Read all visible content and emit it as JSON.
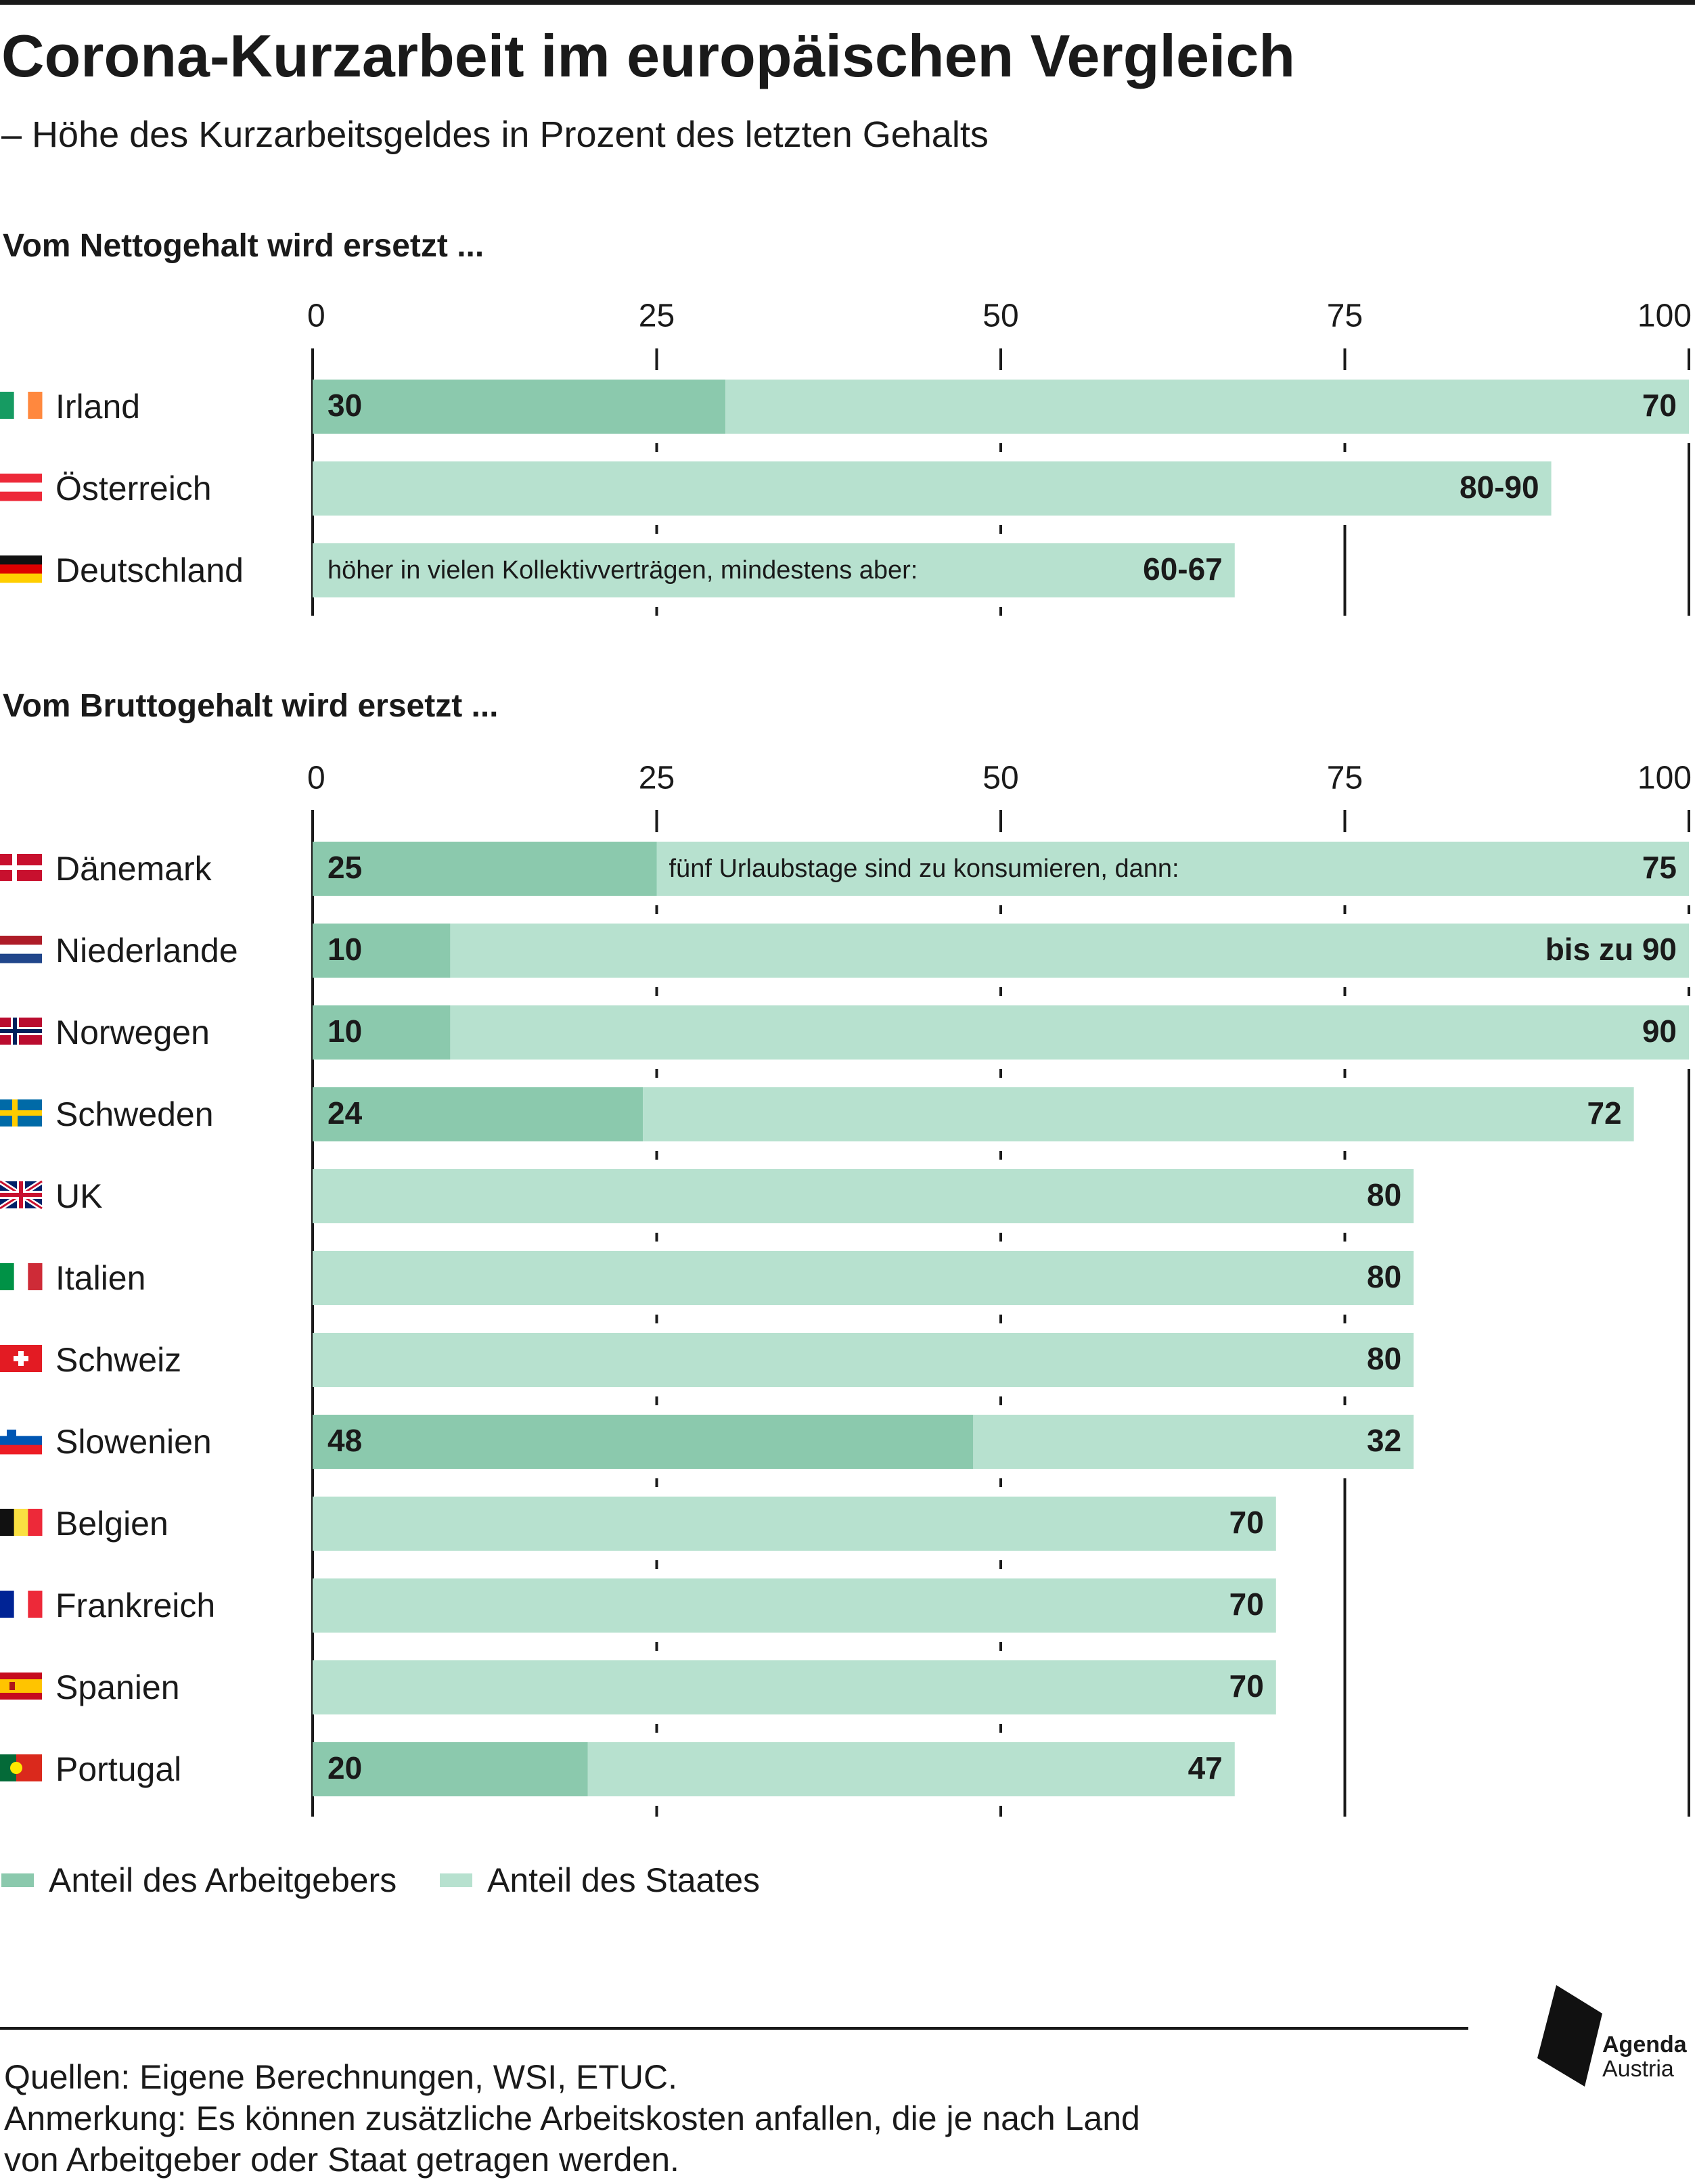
{
  "title": "Corona-Kurzarbeit im europäischen Vergleich",
  "subtitle": "– Höhe des Kurzarbeitsgeldes in Prozent des letzten Gehalts",
  "colors": {
    "employer": "#8bc9ad",
    "state": "#b7e1cf",
    "axis": "#1a1a1a"
  },
  "legend": {
    "employer": "Anteil des Arbeitgebers",
    "state": "Anteil des Staates"
  },
  "footer": {
    "line1": "Quellen: Eigene Berechnungen, WSI, ETUC.",
    "line2": "Anmerkung: Es können zusätzliche Arbeitskosten anfallen, die je nach Land",
    "line3": "von Arbeitgeber oder Staat getragen werden."
  },
  "logo": {
    "line1": "Agenda",
    "line2": "Austria"
  },
  "chart_data": [
    {
      "type": "bar",
      "orientation": "horizontal",
      "stacked": true,
      "title": "Vom Nettogehalt wird ersetzt ...",
      "xlim": [
        0,
        100
      ],
      "ticks": [
        0,
        25,
        50,
        75,
        100
      ],
      "rows": [
        {
          "country": "Irland",
          "flag": "flag-ireland",
          "employer": 30,
          "state": 70,
          "employer_label": "30",
          "state_label": "70",
          "note": ""
        },
        {
          "country": "Österreich",
          "flag": "flag-austria",
          "employer": 0,
          "state": 90,
          "employer_label": "",
          "state_label": "80-90",
          "note": ""
        },
        {
          "country": "Deutschland",
          "flag": "flag-germany",
          "employer": 0,
          "state": 67,
          "employer_label": "",
          "state_label": "60-67",
          "note": "höher in vielen Kollektivverträgen, mindestens aber:"
        }
      ]
    },
    {
      "type": "bar",
      "orientation": "horizontal",
      "stacked": true,
      "title": "Vom Bruttogehalt wird ersetzt ...",
      "xlim": [
        0,
        100
      ],
      "ticks": [
        0,
        25,
        50,
        75,
        100
      ],
      "rows": [
        {
          "country": "Dänemark",
          "flag": "flag-denmark",
          "employer": 25,
          "state": 75,
          "employer_label": "25",
          "state_label": "75",
          "note": "fünf Urlaubstage sind zu konsumieren, dann:"
        },
        {
          "country": "Niederlande",
          "flag": "flag-netherlands",
          "employer": 10,
          "state": 90,
          "employer_label": "10",
          "state_label": "bis zu 90",
          "note": ""
        },
        {
          "country": "Norwegen",
          "flag": "flag-norway",
          "employer": 10,
          "state": 90,
          "employer_label": "10",
          "state_label": "90",
          "note": ""
        },
        {
          "country": "Schweden",
          "flag": "flag-sweden",
          "employer": 24,
          "state": 72,
          "employer_label": "24",
          "state_label": "72",
          "note": ""
        },
        {
          "country": "UK",
          "flag": "flag-uk",
          "employer": 0,
          "state": 80,
          "employer_label": "",
          "state_label": "80",
          "note": ""
        },
        {
          "country": "Italien",
          "flag": "flag-italy",
          "employer": 0,
          "state": 80,
          "employer_label": "",
          "state_label": "80",
          "note": ""
        },
        {
          "country": "Schweiz",
          "flag": "flag-switzerland",
          "employer": 0,
          "state": 80,
          "employer_label": "",
          "state_label": "80",
          "note": ""
        },
        {
          "country": "Slowenien",
          "flag": "flag-slovenia",
          "employer": 48,
          "state": 32,
          "employer_label": "48",
          "state_label": "32",
          "note": ""
        },
        {
          "country": "Belgien",
          "flag": "flag-belgium",
          "employer": 0,
          "state": 70,
          "employer_label": "",
          "state_label": "70",
          "note": ""
        },
        {
          "country": "Frankreich",
          "flag": "flag-france",
          "employer": 0,
          "state": 70,
          "employer_label": "",
          "state_label": "70",
          "note": ""
        },
        {
          "country": "Spanien",
          "flag": "flag-spain",
          "employer": 0,
          "state": 70,
          "employer_label": "",
          "state_label": "70",
          "note": ""
        },
        {
          "country": "Portugal",
          "flag": "flag-portugal",
          "employer": 20,
          "state": 47,
          "employer_label": "20",
          "state_label": "47",
          "note": ""
        }
      ]
    }
  ]
}
